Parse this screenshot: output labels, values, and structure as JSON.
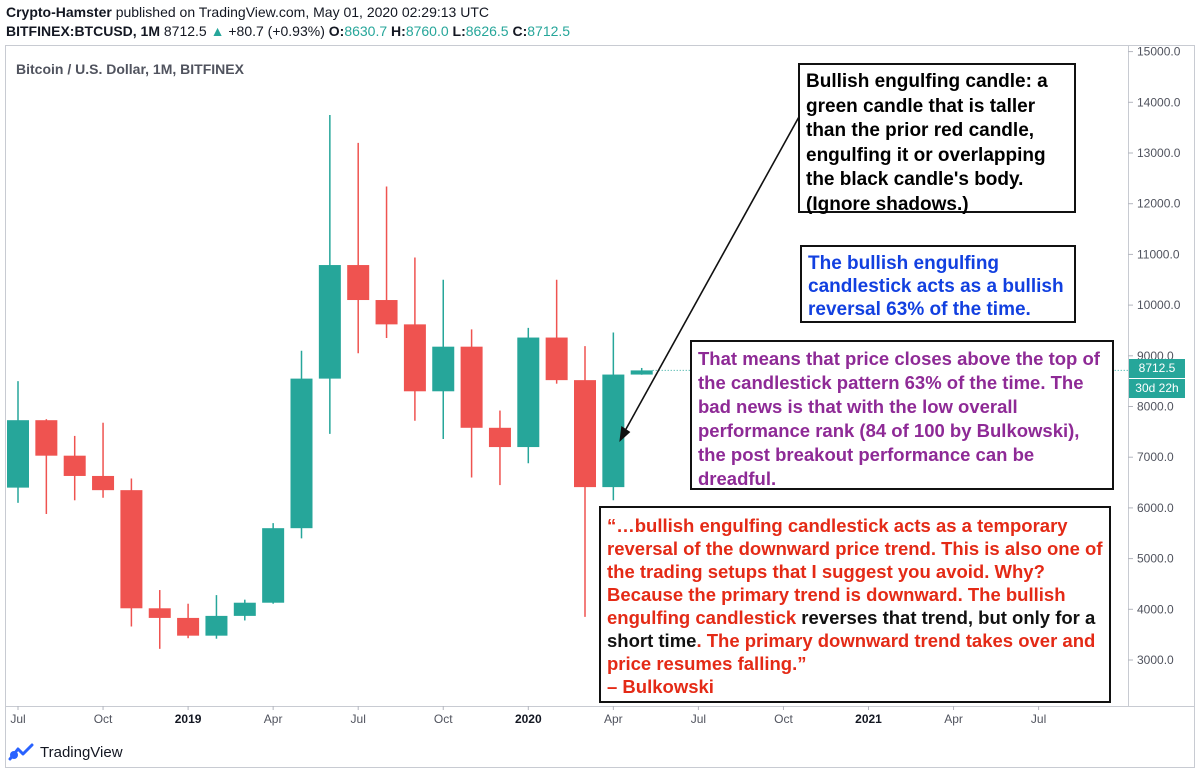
{
  "header": {
    "author": "Crypto-Hamster",
    "published": " published on TradingView.com, May 01, 2020 02:29:13 UTC",
    "symbol": "BITFINEX:BTCUSD, 1M",
    "last": "8712.5",
    "change": "+80.7 (+0.93%)",
    "o_label": "O:",
    "o_val": "8630.7",
    "h_label": "H:",
    "h_val": "8760.0",
    "l_label": "L:",
    "l_val": "8626.5",
    "c_label": "C:",
    "c_val": "8712.5"
  },
  "series_label": "Bitcoin / U.S. Dollar, 1M, BITFINEX",
  "price_tags": {
    "last_price": "8712.5",
    "countdown": "30d 22h"
  },
  "colors": {
    "up": "#26a69a",
    "down": "#ef5350",
    "annotation_blue": "#1240e0",
    "annotation_purple": "#8e2a96",
    "annotation_red": "#e42a16"
  },
  "annotations": {
    "note1": "Bullish engulfing candle: a green candle that is taller than the prior red candle, engulfing it or overlapping the black candle's body. (Ignore shadows.)",
    "note2": "The bullish engulfing candlestick acts as a bullish reversal 63% of the time.",
    "note3": "That means that price closes above the top of the candlestick pattern 63% of the time. The bad news is that with the low overall performance rank (84 of 100 by Bulkowski), the post breakout performance can be dreadful.",
    "note4_a": "“…bullish engulfing candlestick acts as a temporary reversal of the downward price trend. This is also one of the trading setups that I suggest you avoid. Why? Because the primary trend is downward. The bullish engulfing candlestick",
    "note4_b": " reverses that trend, but only for a short time",
    "note4_c": ". The primary downward trend takes over and price resumes falling.”",
    "note4_d": "– Bulkowski"
  },
  "footer": {
    "brand": "TradingView",
    "logo_icon": "tradingview-logo-icon"
  },
  "chart_data": {
    "type": "candlestick",
    "title": "Bitcoin / U.S. Dollar, 1M, BITFINEX",
    "y_ticks": [
      3000,
      4000,
      5000,
      6000,
      7000,
      8000,
      9000,
      10000,
      11000,
      12000,
      13000,
      14000,
      15000
    ],
    "y_tick_labels": [
      "3000.0",
      "4000.0",
      "5000.0",
      "6000.0",
      "7000.0",
      "8000.0",
      "9000.0",
      "10000.0",
      "11000.0",
      "12000.0",
      "13000.0",
      "14000.0",
      "15000.0"
    ],
    "ylim": [
      2150,
      15200
    ],
    "x_tick_labels": [
      "Jul",
      "Oct",
      "2019",
      "Apr",
      "Jul",
      "Oct",
      "2020",
      "Apr",
      "Jul",
      "Oct",
      "2021",
      "Apr",
      "Jul"
    ],
    "x_tick_index": [
      0,
      3,
      6,
      9,
      12,
      15,
      18,
      21,
      24,
      27,
      30,
      33,
      36
    ],
    "bold_x_ticks": [
      "2019",
      "2020",
      "2021"
    ],
    "grid": false,
    "candles": [
      {
        "month": "2018-07",
        "o": 6400,
        "h": 8500,
        "l": 6100,
        "c": 7730
      },
      {
        "month": "2018-08",
        "o": 7730,
        "h": 7750,
        "l": 5880,
        "c": 7030
      },
      {
        "month": "2018-09",
        "o": 7030,
        "h": 7420,
        "l": 6150,
        "c": 6630
      },
      {
        "month": "2018-10",
        "o": 6630,
        "h": 7680,
        "l": 6200,
        "c": 6350
      },
      {
        "month": "2018-11",
        "o": 6350,
        "h": 6580,
        "l": 3660,
        "c": 4020
      },
      {
        "month": "2018-12",
        "o": 4020,
        "h": 4380,
        "l": 3220,
        "c": 3830
      },
      {
        "month": "2019-01",
        "o": 3830,
        "h": 4110,
        "l": 3430,
        "c": 3480
      },
      {
        "month": "2019-02",
        "o": 3480,
        "h": 4280,
        "l": 3420,
        "c": 3870
      },
      {
        "month": "2019-03",
        "o": 3870,
        "h": 4190,
        "l": 3780,
        "c": 4130
      },
      {
        "month": "2019-04",
        "o": 4130,
        "h": 5700,
        "l": 4110,
        "c": 5600
      },
      {
        "month": "2019-05",
        "o": 5600,
        "h": 9100,
        "l": 5400,
        "c": 8550
      },
      {
        "month": "2019-06",
        "o": 8550,
        "h": 13750,
        "l": 7460,
        "c": 10790
      },
      {
        "month": "2019-07",
        "o": 10790,
        "h": 13200,
        "l": 9050,
        "c": 10100
      },
      {
        "month": "2019-08",
        "o": 10100,
        "h": 12340,
        "l": 9350,
        "c": 9620
      },
      {
        "month": "2019-09",
        "o": 9620,
        "h": 10940,
        "l": 7720,
        "c": 8300
      },
      {
        "month": "2019-10",
        "o": 8300,
        "h": 10500,
        "l": 7360,
        "c": 9180
      },
      {
        "month": "2019-11",
        "o": 9180,
        "h": 9520,
        "l": 6600,
        "c": 7580
      },
      {
        "month": "2019-12",
        "o": 7580,
        "h": 7920,
        "l": 6450,
        "c": 7200
      },
      {
        "month": "2020-01",
        "o": 7200,
        "h": 9550,
        "l": 6880,
        "c": 9360
      },
      {
        "month": "2020-02",
        "o": 9360,
        "h": 10500,
        "l": 8450,
        "c": 8520
      },
      {
        "month": "2020-03",
        "o": 8520,
        "h": 9190,
        "l": 3850,
        "c": 6410
      },
      {
        "month": "2020-04",
        "o": 6410,
        "h": 9460,
        "l": 6150,
        "c": 8630
      },
      {
        "month": "2020-05",
        "o": 8630,
        "h": 8760,
        "l": 8626,
        "c": 8712
      }
    ]
  }
}
